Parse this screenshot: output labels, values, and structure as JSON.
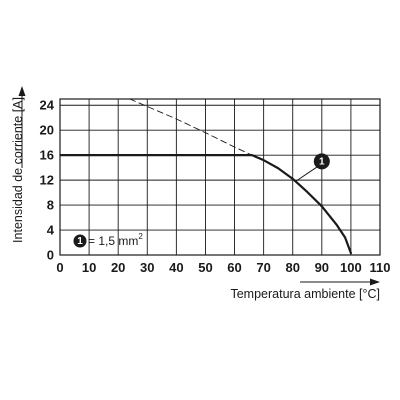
{
  "chart_data": {
    "type": "line",
    "xlabel": "Temperatura ambiente [°C]",
    "ylabel": "Intensidad de corriente [A]",
    "xlim": [
      0,
      110
    ],
    "ylim": [
      0,
      25
    ],
    "x_ticks": [
      0,
      10,
      20,
      30,
      40,
      50,
      60,
      70,
      80,
      90,
      100,
      110
    ],
    "y_ticks": [
      0,
      4,
      8,
      12,
      16,
      20,
      24
    ],
    "grid": true,
    "series": [
      {
        "style": "solid",
        "x": [
          0,
          10,
          20,
          30,
          40,
          50,
          60,
          66,
          70,
          75,
          80,
          85,
          90,
          95,
          98,
          100
        ],
        "y": [
          16,
          16,
          16,
          16,
          16,
          16,
          16,
          16,
          15.2,
          13.9,
          12.2,
          10.1,
          7.8,
          4.9,
          2.8,
          0.3
        ]
      },
      {
        "style": "dashed",
        "x": [
          24,
          30,
          40,
          50,
          60,
          66
        ],
        "y": [
          25,
          23.8,
          21.8,
          19.6,
          17.3,
          16
        ]
      }
    ],
    "annotations": [
      {
        "marker": "1",
        "x": 81,
        "y": 11.8,
        "marker_x": 90,
        "marker_y": 15
      }
    ],
    "legend": {
      "marker": "1",
      "text": "= 1,5 mm",
      "superscript": "2",
      "position": "bottom-left"
    },
    "colors": {
      "line": "#1a1a1a",
      "grid": "#1a1a1a",
      "marker_fill": "#1a1a1a"
    }
  }
}
